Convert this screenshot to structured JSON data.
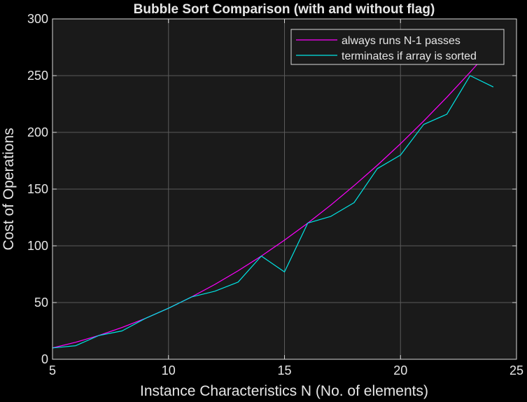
{
  "chart_data": {
    "type": "line",
    "title": "Bubble Sort Comparison (with and without flag)",
    "xlabel": "Instance Characteristics N (No. of elements)",
    "ylabel": "Cost of Operations",
    "xlim": [
      5,
      25
    ],
    "ylim": [
      0,
      300
    ],
    "xticks": [
      5,
      10,
      15,
      20,
      25
    ],
    "yticks": [
      0,
      50,
      100,
      150,
      200,
      250,
      300
    ],
    "grid": true,
    "legend_position": "top-right",
    "colors": {
      "background": "#000000",
      "axes_bg": "#1a1a1a",
      "grid": "#5a5a5a",
      "axis": "#d9d9d9",
      "text": "#e6e6e6"
    },
    "series": [
      {
        "name": "always runs N-1 passes",
        "color": "#ff00ff",
        "x": [
          5,
          6,
          7,
          8,
          9,
          10,
          11,
          12,
          13,
          14,
          15,
          16,
          17,
          18,
          19,
          20,
          21,
          22,
          23,
          24
        ],
        "y": [
          10,
          15,
          21,
          28,
          36,
          45,
          55,
          66,
          78,
          91,
          105,
          120,
          136,
          153,
          171,
          190,
          210,
          231,
          253,
          276
        ]
      },
      {
        "name": "terminates if array is sorted",
        "color": "#00e5e5",
        "x": [
          5,
          6,
          7,
          8,
          9,
          10,
          11,
          12,
          13,
          14,
          15,
          16,
          17,
          18,
          19,
          20,
          21,
          22,
          23,
          24
        ],
        "y": [
          10,
          12,
          21,
          25,
          36,
          45,
          55,
          60,
          68,
          91,
          77,
          120,
          126,
          138,
          168,
          180,
          207,
          216,
          250,
          240
        ]
      }
    ]
  }
}
